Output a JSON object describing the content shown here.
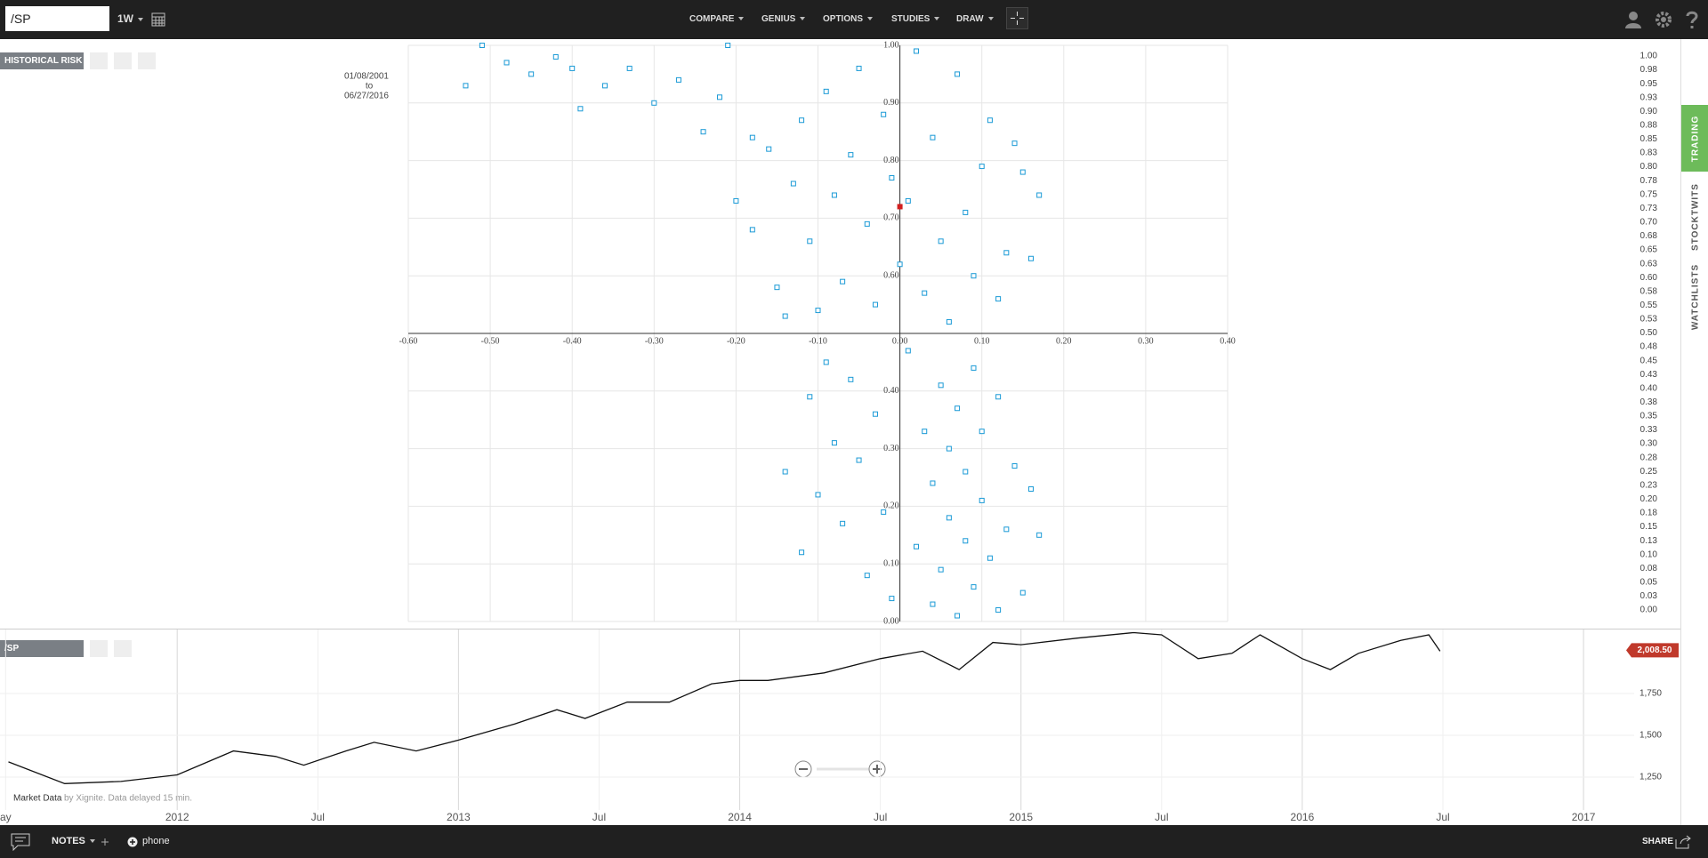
{
  "toolbar": {
    "symbol": "/SP",
    "interval": "1W",
    "menu": [
      "COMPARE",
      "GENIUS",
      "OPTIONS",
      "STUDIES",
      "DRAW"
    ]
  },
  "sidebar_tabs": [
    "TRADING",
    "STOCKTWITS",
    "WATCHLISTS"
  ],
  "footer": {
    "notes": "NOTES",
    "phone": "phone",
    "share": "SHARE"
  },
  "chart_data": [
    {
      "type": "scatter",
      "panel_label": "HISTORICAL RISK",
      "date_from": "01/08/2001",
      "date_to_word": "to",
      "date_to": "06/27/2016",
      "color": "#1a9ad6",
      "x": [
        -0.53,
        -0.51,
        -0.48,
        -0.45,
        -0.42,
        -0.4,
        -0.39,
        -0.36,
        -0.33,
        -0.3,
        -0.27,
        -0.24,
        -0.22,
        -0.21,
        -0.2,
        -0.18,
        -0.18,
        -0.16,
        -0.15,
        -0.14,
        -0.13,
        -0.12,
        -0.11,
        -0.1,
        -0.09,
        -0.08,
        -0.07,
        -0.06,
        -0.05,
        -0.04,
        -0.03,
        -0.02,
        -0.01,
        0.0,
        0.01,
        0.02,
        0.03,
        0.04,
        0.05,
        0.06,
        0.07,
        0.08,
        0.09,
        0.1,
        0.11,
        0.12,
        0.13,
        0.14,
        0.15,
        0.16,
        0.17,
        -0.14,
        -0.12,
        -0.11,
        -0.1,
        -0.09,
        -0.08,
        -0.07,
        -0.06,
        -0.05,
        -0.04,
        -0.03,
        -0.02,
        -0.01,
        0.01,
        0.02,
        0.03,
        0.04,
        0.04,
        0.05,
        0.05,
        0.06,
        0.06,
        0.07,
        0.07,
        0.08,
        0.08,
        0.09,
        0.09,
        0.1,
        0.1,
        0.11,
        0.12,
        0.12,
        0.13,
        0.14,
        0.15,
        0.16,
        0.17
      ],
      "values": [
        0.93,
        1.0,
        0.97,
        0.95,
        0.98,
        0.96,
        0.89,
        0.93,
        0.96,
        0.9,
        0.94,
        0.85,
        0.91,
        1.0,
        0.73,
        0.84,
        0.68,
        0.82,
        0.58,
        0.53,
        0.76,
        0.87,
        0.66,
        0.54,
        0.92,
        0.74,
        0.59,
        0.81,
        0.96,
        0.69,
        0.55,
        0.88,
        0.77,
        0.62,
        0.73,
        0.99,
        0.57,
        0.84,
        0.66,
        0.52,
        0.95,
        0.71,
        0.6,
        0.79,
        0.87,
        0.56,
        0.64,
        0.83,
        0.78,
        0.63,
        0.74,
        0.26,
        0.12,
        0.39,
        0.22,
        0.45,
        0.31,
        0.17,
        0.42,
        0.28,
        0.08,
        0.36,
        0.19,
        0.04,
        0.47,
        0.13,
        0.33,
        0.03,
        0.24,
        0.41,
        0.09,
        0.18,
        0.3,
        0.01,
        0.37,
        0.14,
        0.26,
        0.06,
        0.44,
        0.21,
        0.33,
        0.11,
        0.02,
        0.39,
        0.16,
        0.27,
        0.05,
        0.23,
        0.15
      ],
      "highlight": {
        "x": [
          0.0
        ],
        "values": [
          0.72
        ],
        "color": "#d21f1f"
      },
      "xlim": [
        -0.6,
        0.4
      ],
      "ylim": [
        0,
        1
      ],
      "xaxis_at": 0.5,
      "yaxis_at": 0,
      "xticks": [
        {
          "value": -0.6,
          "label": "-0.60"
        },
        {
          "value": -0.5,
          "label": "-0.50"
        },
        {
          "value": -0.4,
          "label": "-0.40"
        },
        {
          "value": -0.3,
          "label": "-0.30"
        },
        {
          "value": -0.2,
          "label": "-0.20"
        },
        {
          "value": -0.1,
          "label": "-0.10"
        },
        {
          "value": 0,
          "label": "0.00"
        },
        {
          "value": 0.1,
          "label": "0.10"
        },
        {
          "value": 0.2,
          "label": "0.20"
        },
        {
          "value": 0.3,
          "label": "0.30"
        },
        {
          "value": 0.4,
          "label": "0.40"
        }
      ],
      "yticks": [
        {
          "value": 0,
          "label": "0.00"
        },
        {
          "value": 0.1,
          "label": "0.10"
        },
        {
          "value": 0.2,
          "label": "0.20"
        },
        {
          "value": 0.3,
          "label": "0.30"
        },
        {
          "value": 0.4,
          "label": "0.40"
        },
        {
          "value": 0.6,
          "label": "0.60"
        },
        {
          "value": 0.7,
          "label": "0.70"
        },
        {
          "value": 0.8,
          "label": "0.80"
        },
        {
          "value": 0.9,
          "label": "0.90"
        },
        {
          "value": 1,
          "label": "1.00"
        }
      ],
      "y2lim": [
        0,
        1
      ],
      "y2ticks": [
        {
          "value": 1,
          "label": "1.00"
        },
        {
          "value": 0.975,
          "label": "0.98"
        },
        {
          "value": 0.95,
          "label": "0.95"
        },
        {
          "value": 0.925,
          "label": "0.93"
        },
        {
          "value": 0.9,
          "label": "0.90"
        },
        {
          "value": 0.875,
          "label": "0.88"
        },
        {
          "value": 0.85,
          "label": "0.85"
        },
        {
          "value": 0.825,
          "label": "0.83"
        },
        {
          "value": 0.8,
          "label": "0.80"
        },
        {
          "value": 0.775,
          "label": "0.78"
        },
        {
          "value": 0.75,
          "label": "0.75"
        },
        {
          "value": 0.725,
          "label": "0.73"
        },
        {
          "value": 0.7,
          "label": "0.70"
        },
        {
          "value": 0.675,
          "label": "0.68"
        },
        {
          "value": 0.65,
          "label": "0.65"
        },
        {
          "value": 0.625,
          "label": "0.63"
        },
        {
          "value": 0.6,
          "label": "0.60"
        },
        {
          "value": 0.575,
          "label": "0.58"
        },
        {
          "value": 0.55,
          "label": "0.55"
        },
        {
          "value": 0.525,
          "label": "0.53"
        },
        {
          "value": 0.5,
          "label": "0.50"
        },
        {
          "value": 0.475,
          "label": "0.48"
        },
        {
          "value": 0.45,
          "label": "0.45"
        },
        {
          "value": 0.425,
          "label": "0.43"
        },
        {
          "value": 0.4,
          "label": "0.40"
        },
        {
          "value": 0.375,
          "label": "0.38"
        },
        {
          "value": 0.35,
          "label": "0.35"
        },
        {
          "value": 0.325,
          "label": "0.33"
        },
        {
          "value": 0.3,
          "label": "0.30"
        },
        {
          "value": 0.275,
          "label": "0.28"
        },
        {
          "value": 0.25,
          "label": "0.25"
        },
        {
          "value": 0.225,
          "label": "0.23"
        },
        {
          "value": 0.2,
          "label": "0.20"
        },
        {
          "value": 0.175,
          "label": "0.18"
        },
        {
          "value": 0.15,
          "label": "0.15"
        },
        {
          "value": 0.125,
          "label": "0.13"
        },
        {
          "value": 0.1,
          "label": "0.10"
        },
        {
          "value": 0.075,
          "label": "0.08"
        },
        {
          "value": 0.05,
          "label": "0.05"
        },
        {
          "value": 0.025,
          "label": "0.03"
        },
        {
          "value": 0,
          "label": "0.00"
        }
      ],
      "grid": true
    },
    {
      "type": "line",
      "panel_label": "/SP",
      "color": "#111111",
      "credit_source": "Market Data",
      "credit_note": "by Xignite. Data delayed 15 min.",
      "x": [
        2011.4,
        2011.6,
        2011.8,
        2012.0,
        2012.2,
        2012.35,
        2012.45,
        2012.6,
        2012.7,
        2012.85,
        2013.0,
        2013.2,
        2013.35,
        2013.45,
        2013.6,
        2013.75,
        2013.9,
        2014.0,
        2014.1,
        2014.3,
        2014.5,
        2014.65,
        2014.78,
        2014.9,
        2015.0,
        2015.2,
        2015.4,
        2015.5,
        2015.63,
        2015.75,
        2015.85,
        2016.0,
        2016.1,
        2016.2,
        2016.35,
        2016.45,
        2016.49
      ],
      "values": [
        1341,
        1211,
        1224,
        1263,
        1406,
        1373,
        1321,
        1406,
        1458,
        1406,
        1471,
        1568,
        1653,
        1601,
        1698,
        1698,
        1808,
        1828,
        1828,
        1873,
        1958,
        2003,
        1893,
        2055,
        2042,
        2081,
        2114,
        2101,
        1958,
        1990,
        2101,
        1958,
        1893,
        1990,
        2068,
        2101,
        2003
      ],
      "xlim": [
        2011.37,
        2017.18
      ],
      "ylim": [
        968,
        2138
      ],
      "xticks": [
        {
          "value": 2011.39,
          "label": "ay"
        },
        2012,
        {
          "value": 2012.5,
          "label": "Jul"
        },
        2013,
        {
          "value": 2013.5,
          "label": "Jul"
        },
        2014,
        {
          "value": 2014.5,
          "label": "Jul"
        },
        2015,
        {
          "value": 2015.5,
          "label": "Jul"
        },
        2016,
        {
          "value": 2016.5,
          "label": "Jul"
        },
        2017
      ],
      "yticks": [
        {
          "value": 1250,
          "label": "1,250"
        },
        {
          "value": 1500,
          "label": "1,500"
        },
        {
          "value": 1750,
          "label": "1,750"
        }
      ],
      "last_price": {
        "value": 2008.5,
        "label": "2,008.50"
      },
      "last_price_color": "#c0392b",
      "grid": true
    }
  ]
}
